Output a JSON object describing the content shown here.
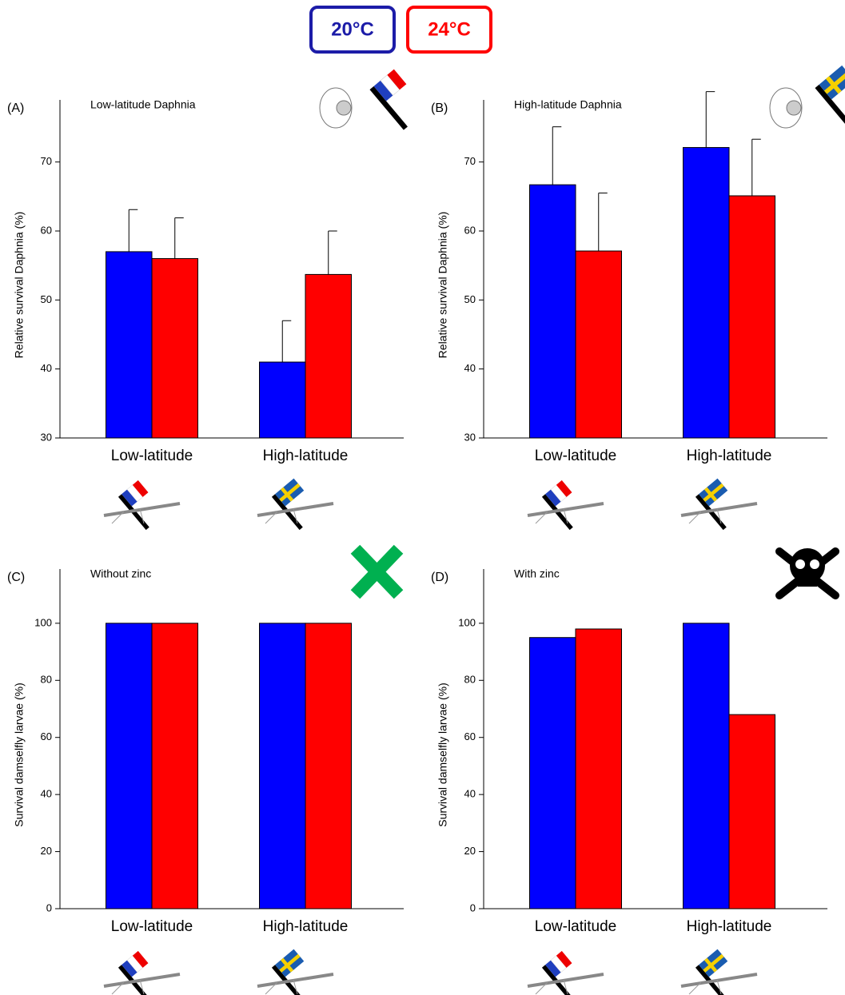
{
  "chart_data": [
    {
      "type": "bar",
      "panel": "(A)",
      "title": "Low-latitude Daphnia",
      "y_label": "Relative survival Daphnia (%)",
      "categories": [
        "Low-latitude",
        "High-latitude"
      ],
      "series": [
        {
          "name": "20°C",
          "color": "#0000ff",
          "values": [
            57,
            41
          ],
          "errors": [
            6.1,
            6
          ]
        },
        {
          "name": "24°C",
          "color": "#ff0000",
          "values": [
            56,
            53.7
          ],
          "errors": [
            5.9,
            6.3
          ]
        }
      ],
      "ylim": [
        30,
        79
      ],
      "yticks": [
        30,
        40,
        50,
        60,
        70
      ],
      "grid": false
    },
    {
      "type": "bar",
      "panel": "(B)",
      "title": "High-latitude Daphnia",
      "y_label": "Relative survival Daphnia (%)",
      "categories": [
        "Low-latitude",
        "High-latitude"
      ],
      "series": [
        {
          "name": "20°C",
          "color": "#0000ff",
          "values": [
            66.7,
            72.1
          ],
          "errors": [
            8.4,
            8.1
          ]
        },
        {
          "name": "24°C",
          "color": "#ff0000",
          "values": [
            57.1,
            65.1
          ],
          "errors": [
            8.4,
            8.2
          ]
        }
      ],
      "ylim": [
        30,
        79
      ],
      "yticks": [
        30,
        40,
        50,
        60,
        70
      ],
      "grid": false
    },
    {
      "type": "bar",
      "panel": "(C)",
      "title": "Without zinc",
      "y_label": "Survival damselfly larvae (%)",
      "categories": [
        "Low-latitude",
        "High-latitude"
      ],
      "series": [
        {
          "name": "20°C",
          "color": "#0000ff",
          "values": [
            100,
            100
          ]
        },
        {
          "name": "24°C",
          "color": "#ff0000",
          "values": [
            100,
            100
          ]
        }
      ],
      "ylim": [
        0,
        119
      ],
      "yticks": [
        0,
        20,
        40,
        60,
        80,
        100
      ],
      "grid": false
    },
    {
      "type": "bar",
      "panel": "(D)",
      "title": "With zinc",
      "y_label": "Survival damselfly larvae (%)",
      "categories": [
        "Low-latitude",
        "High-latitude"
      ],
      "series": [
        {
          "name": "20°C",
          "color": "#0000ff",
          "values": [
            95,
            100
          ]
        },
        {
          "name": "24°C",
          "color": "#ff0000",
          "values": [
            98,
            68
          ]
        }
      ],
      "ylim": [
        0,
        119
      ],
      "yticks": [
        0,
        20,
        40,
        60,
        80,
        100
      ],
      "grid": false
    }
  ]
}
